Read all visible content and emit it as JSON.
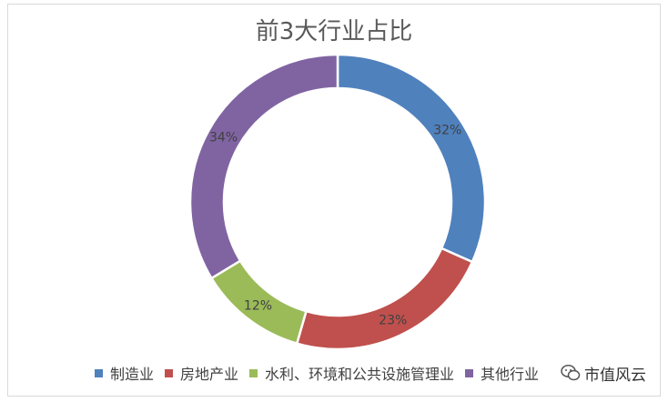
{
  "chart_data": {
    "type": "pie",
    "title": "前3大行业占比",
    "categories": [
      "制造业",
      "房地产业",
      "水利、环境和公共设施管理业",
      "其他行业"
    ],
    "values": [
      32,
      23,
      12,
      34
    ],
    "value_labels": [
      "32%",
      "23%",
      "12%",
      "34%"
    ],
    "colors": [
      "#4f81bd",
      "#c0504d",
      "#9bbb59",
      "#8064a2"
    ],
    "legend_position": "bottom",
    "donut": true
  },
  "watermark": {
    "text": "市值风云",
    "icon": "wechat-icon"
  }
}
